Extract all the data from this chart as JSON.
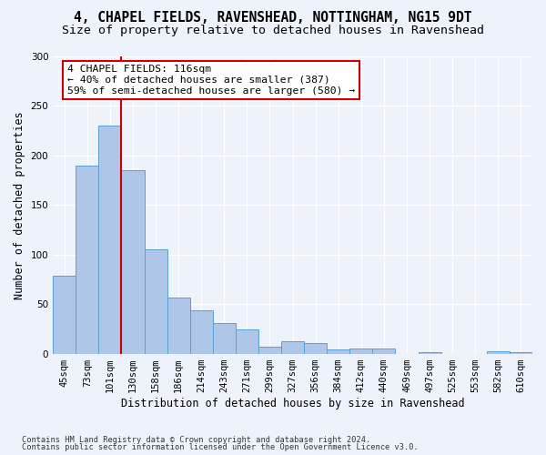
{
  "title1": "4, CHAPEL FIELDS, RAVENSHEAD, NOTTINGHAM, NG15 9DT",
  "title2": "Size of property relative to detached houses in Ravenshead",
  "xlabel": "Distribution of detached houses by size in Ravenshead",
  "ylabel": "Number of detached properties",
  "categories": [
    "45sqm",
    "73sqm",
    "101sqm",
    "130sqm",
    "158sqm",
    "186sqm",
    "214sqm",
    "243sqm",
    "271sqm",
    "299sqm",
    "327sqm",
    "356sqm",
    "384sqm",
    "412sqm",
    "440sqm",
    "469sqm",
    "497sqm",
    "525sqm",
    "553sqm",
    "582sqm",
    "610sqm"
  ],
  "values": [
    79,
    190,
    230,
    185,
    105,
    57,
    44,
    31,
    25,
    7,
    13,
    11,
    5,
    6,
    6,
    0,
    2,
    0,
    0,
    3,
    2
  ],
  "bar_color": "#aec6e8",
  "bar_edge_color": "#5a9fd4",
  "background_color": "#eef2fb",
  "grid_color": "#ffffff",
  "vline_x": 2.5,
  "vline_color": "#cc0000",
  "annotation_text": "4 CHAPEL FIELDS: 116sqm\n← 40% of detached houses are smaller (387)\n59% of semi-detached houses are larger (580) →",
  "annotation_box_color": "#ffffff",
  "annotation_box_edge": "#cc0000",
  "footer1": "Contains HM Land Registry data © Crown copyright and database right 2024.",
  "footer2": "Contains public sector information licensed under the Open Government Licence v3.0.",
  "ylim": [
    0,
    300
  ],
  "title_fontsize": 10.5,
  "subtitle_fontsize": 9.5,
  "axis_fontsize": 8.5,
  "tick_fontsize": 7.5
}
